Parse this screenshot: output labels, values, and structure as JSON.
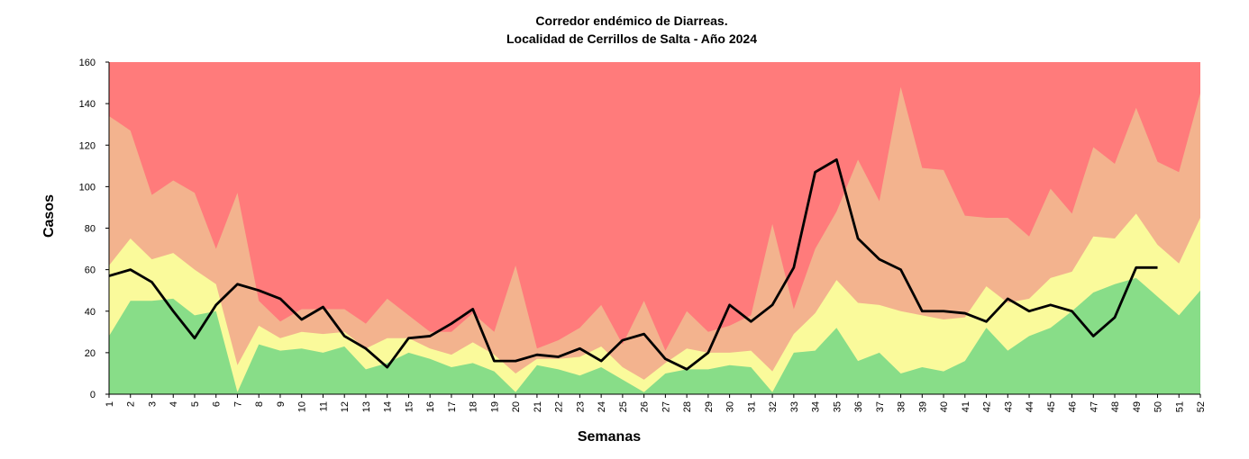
{
  "chart_data": {
    "type": "area",
    "title": "Corredor endémico de Diarreas.",
    "subtitle": "Localidad de Cerrillos de Salta - Año 2024",
    "xlabel": "Semanas",
    "ylabel": "Casos",
    "ylim": [
      0,
      160
    ],
    "yticks": [
      0,
      20,
      40,
      60,
      80,
      100,
      120,
      140,
      160
    ],
    "x": [
      1,
      2,
      3,
      4,
      5,
      6,
      7,
      8,
      9,
      10,
      11,
      12,
      13,
      14,
      15,
      16,
      17,
      18,
      19,
      20,
      21,
      22,
      23,
      24,
      25,
      26,
      27,
      28,
      29,
      30,
      31,
      32,
      33,
      34,
      35,
      36,
      37,
      38,
      39,
      40,
      41,
      42,
      43,
      44,
      45,
      46,
      47,
      48,
      49,
      50,
      51,
      52
    ],
    "grid": false,
    "legend": "none",
    "series": [
      {
        "role": "exito",
        "color": "#88dd88",
        "values": [
          28,
          45,
          45,
          46,
          38,
          40,
          1,
          24,
          21,
          22,
          20,
          23,
          12,
          15,
          20,
          17,
          13,
          15,
          11,
          1,
          14,
          12,
          9,
          13,
          7,
          1,
          10,
          12,
          12,
          14,
          13,
          1,
          20,
          21,
          32,
          16,
          20,
          10,
          13,
          11,
          16,
          32,
          21,
          28,
          32,
          40,
          49,
          53,
          56,
          47,
          38,
          50
        ]
      },
      {
        "role": "seguridad",
        "color": "#fafa9b",
        "values": [
          62,
          75,
          65,
          68,
          60,
          53,
          14,
          33,
          27,
          30,
          29,
          30,
          22,
          27,
          27,
          22,
          19,
          25,
          19,
          10,
          17,
          17,
          18,
          23,
          13,
          7,
          15,
          22,
          20,
          20,
          21,
          11,
          29,
          39,
          55,
          44,
          43,
          40,
          38,
          36,
          37,
          52,
          44,
          46,
          56,
          59,
          76,
          75,
          87,
          72,
          63,
          85
        ]
      },
      {
        "role": "alerta",
        "color": "#f3b38e",
        "values": [
          134,
          127,
          96,
          103,
          97,
          70,
          97,
          45,
          35,
          41,
          41,
          41,
          34,
          46,
          38,
          30,
          30,
          39,
          30,
          62,
          22,
          26,
          32,
          43,
          24,
          45,
          21,
          40,
          30,
          33,
          38,
          82,
          41,
          70,
          88,
          113,
          93,
          148,
          109,
          108,
          86,
          85,
          85,
          76,
          99,
          87,
          119,
          111,
          138,
          112,
          107,
          145
        ]
      },
      {
        "role": "brote",
        "color": "#ff7b7b",
        "values": [
          160,
          160,
          160,
          160,
          160,
          160,
          160,
          160,
          160,
          160,
          160,
          160,
          160,
          160,
          160,
          160,
          160,
          160,
          160,
          160,
          160,
          160,
          160,
          160,
          160,
          160,
          160,
          160,
          160,
          160,
          160,
          160,
          160,
          160,
          160,
          160,
          160,
          160,
          160,
          160,
          160,
          160,
          160,
          160,
          160,
          160,
          160,
          160,
          160,
          160,
          160,
          160
        ]
      }
    ],
    "cases_2024": {
      "type": "line",
      "color": "#000000",
      "values": [
        57,
        60,
        54,
        40,
        27,
        43,
        53,
        50,
        46,
        36,
        42,
        28,
        22,
        13,
        27,
        28,
        34,
        41,
        16,
        16,
        19,
        18,
        22,
        16,
        26,
        29,
        17,
        12,
        20,
        43,
        35,
        43,
        61,
        107,
        113,
        75,
        65,
        60,
        40,
        40,
        39,
        35,
        46,
        40,
        43,
        40,
        28,
        37,
        61,
        61
      ]
    }
  }
}
